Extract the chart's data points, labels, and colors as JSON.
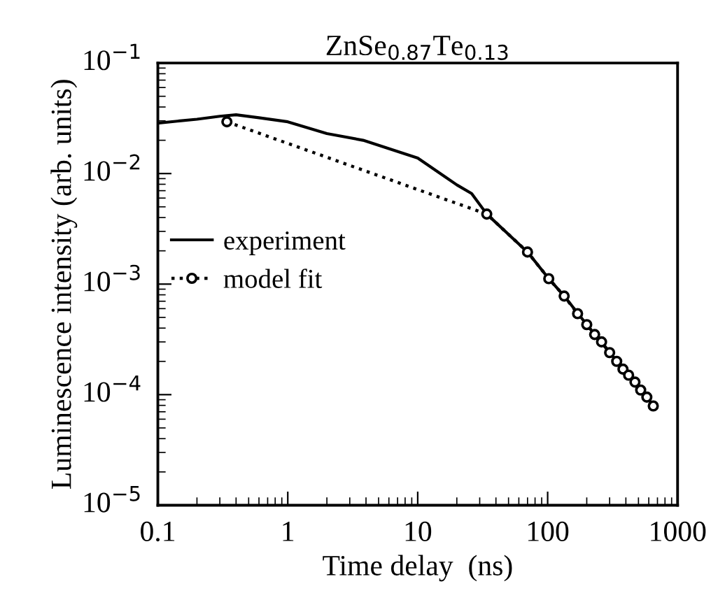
{
  "chart_data": {
    "type": "line",
    "title": "ZnSe$_{0.87}$Te$_{0.13}$",
    "xlabel": "Time delay  (ns)",
    "ylabel": "Luminescence intensity (arb. units)",
    "log": "xy",
    "xlim": [
      0.1,
      1000
    ],
    "ylim": [
      1e-05,
      0.1
    ],
    "xticks": [
      {
        "value": 0.1,
        "label": "0.1"
      },
      {
        "value": 1,
        "label": "1"
      },
      {
        "value": 10,
        "label": "10"
      },
      {
        "value": 100,
        "label": "100"
      },
      {
        "value": 1000,
        "label": "1000"
      }
    ],
    "yticks": [
      {
        "value": 1e-05,
        "label": "10$^{−5}$"
      },
      {
        "value": 0.0001,
        "label": "10$^{−4}$"
      },
      {
        "value": 0.001,
        "label": "10$^{−3}$"
      },
      {
        "value": 0.01,
        "label": "10$^{−2}$"
      },
      {
        "value": 0.1,
        "label": "10$^{−1}$"
      }
    ],
    "grid": false,
    "legend": "left",
    "series": [
      {
        "name": "experiment",
        "color": "#000000",
        "line_style": "solid",
        "marker": "none",
        "x": [
          0.1,
          0.2,
          0.3,
          0.4,
          0.6,
          1,
          2,
          3.8,
          10,
          20,
          26,
          34,
          70,
          102,
          134,
          200,
          300,
          420,
          656
        ],
        "values": [
          0.0286,
          0.031,
          0.033,
          0.034,
          0.032,
          0.0294,
          0.023,
          0.02,
          0.0138,
          0.0079,
          0.0066,
          0.0043,
          0.00195,
          0.00112,
          0.00078,
          0.00043,
          0.00024,
          0.00015,
          7.9e-05
        ]
      },
      {
        "name": "model fit",
        "color": "#000000",
        "line_style": "dotted",
        "marker": "circle",
        "x": [
          0.34,
          34,
          70,
          102,
          134,
          170,
          200,
          230,
          260,
          300,
          340,
          380,
          420,
          470,
          520,
          580,
          650
        ],
        "values": [
          0.0294,
          0.0043,
          0.00195,
          0.00112,
          0.00078,
          0.00054,
          0.00043,
          0.00035,
          0.0003,
          0.00024,
          0.0002,
          0.00017,
          0.00015,
          0.00013,
          0.00011,
          9.5e-05,
          7.9e-05
        ]
      }
    ]
  }
}
